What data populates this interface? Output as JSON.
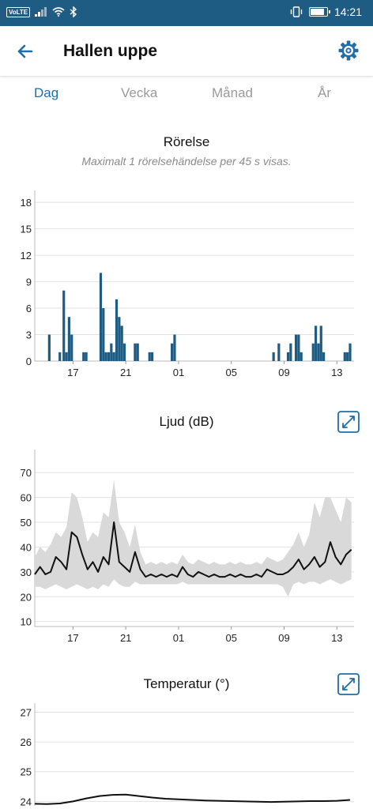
{
  "status_bar": {
    "network_badge": "VoLTE",
    "time": "14:21",
    "battery_level": 0.9,
    "icons": [
      "signal-icon",
      "wifi-icon",
      "bluetooth-icon",
      "vibrate-icon",
      "battery-icon"
    ]
  },
  "header": {
    "title": "Hallen uppe",
    "back_icon": "arrow-left-icon",
    "settings_icon": "gear-icon"
  },
  "tabs": [
    {
      "label": "Dag",
      "active": true
    },
    {
      "label": "Vecka",
      "active": false
    },
    {
      "label": "Månad",
      "active": false
    },
    {
      "label": "År",
      "active": false
    }
  ],
  "colors": {
    "status_bar": "#1f5c84",
    "accent": "#1f6ea8",
    "bar": "#1f5c84",
    "line": "#111111",
    "band": "#d9d9d9"
  },
  "chart_data": [
    {
      "type": "bar",
      "title": "Rörelse",
      "subtitle": "Maximalt 1 rörelsehändelse per 45 s visas.",
      "x_tick_labels": [
        "17",
        "21",
        "01",
        "05",
        "09",
        "13"
      ],
      "x_tick_positions": [
        17,
        21,
        25,
        29,
        33,
        37
      ],
      "x_range": [
        14.1,
        38.3
      ],
      "y_ticks": [
        0,
        3,
        6,
        9,
        12,
        15,
        18
      ],
      "ylim": [
        0,
        19
      ],
      "grid": true,
      "x": [
        15.2,
        16.0,
        16.3,
        16.5,
        16.7,
        16.9,
        17.8,
        18.0,
        19.1,
        19.3,
        19.5,
        19.7,
        19.9,
        20.1,
        20.3,
        20.5,
        20.7,
        20.9,
        21.7,
        21.9,
        22.8,
        23.0,
        24.5,
        24.7,
        32.2,
        32.6,
        33.3,
        33.5,
        33.9,
        34.1,
        34.3,
        35.2,
        35.4,
        35.6,
        35.8,
        36.0,
        37.6,
        37.8,
        38.0
      ],
      "values": [
        3,
        1,
        8,
        1,
        5,
        3,
        1,
        1,
        10,
        6,
        1,
        1,
        2,
        1,
        7,
        5,
        4,
        2,
        2,
        2,
        1,
        1,
        2,
        3,
        1,
        2,
        1,
        2,
        3,
        3,
        1,
        2,
        4,
        2,
        4,
        1,
        1,
        1,
        2
      ]
    },
    {
      "type": "line",
      "title": "Ljud (dB)",
      "x_tick_labels": [
        "17",
        "21",
        "01",
        "05",
        "09",
        "13"
      ],
      "x_tick_positions": [
        17,
        21,
        25,
        29,
        33,
        37
      ],
      "x_range": [
        14.1,
        38.3
      ],
      "y_ticks": [
        10,
        20,
        30,
        40,
        50,
        60,
        70
      ],
      "ylim": [
        8,
        78
      ],
      "grid": true,
      "band": true,
      "x": [
        14.1,
        14.5,
        14.9,
        15.3,
        15.7,
        16.1,
        16.5,
        16.9,
        17.3,
        17.7,
        18.1,
        18.5,
        18.9,
        19.3,
        19.7,
        20.1,
        20.5,
        20.9,
        21.3,
        21.7,
        22.1,
        22.5,
        22.9,
        23.3,
        23.7,
        24.1,
        24.5,
        24.9,
        25.3,
        25.7,
        26.1,
        26.5,
        26.9,
        27.3,
        27.7,
        28.1,
        28.5,
        28.9,
        29.3,
        29.7,
        30.1,
        30.5,
        30.9,
        31.3,
        31.7,
        32.1,
        32.5,
        32.9,
        33.3,
        33.7,
        34.1,
        34.5,
        34.9,
        35.3,
        35.7,
        36.1,
        36.5,
        36.9,
        37.3,
        37.7,
        38.1
      ],
      "values": [
        29,
        32,
        29,
        30,
        36,
        34,
        31,
        46,
        44,
        37,
        31,
        34,
        30,
        36,
        33,
        50,
        34,
        32,
        30,
        38,
        31,
        28,
        29,
        28,
        29,
        28,
        29,
        28,
        32,
        29,
        28,
        30,
        29,
        28,
        29,
        28,
        28,
        29,
        28,
        29,
        28,
        28,
        29,
        28,
        31,
        30,
        29,
        29,
        30,
        32,
        35,
        31,
        33,
        36,
        32,
        34,
        42,
        36,
        33,
        37,
        39
      ],
      "low": [
        24,
        24,
        23,
        24,
        25,
        24,
        23,
        24,
        25,
        24,
        23,
        24,
        23,
        25,
        24,
        27,
        25,
        24,
        24,
        26,
        25,
        25,
        25,
        25,
        25,
        25,
        25,
        25,
        26,
        25,
        25,
        25,
        25,
        25,
        25,
        25,
        25,
        25,
        25,
        25,
        25,
        25,
        25,
        25,
        25,
        25,
        25,
        24,
        20,
        25,
        26,
        25,
        26,
        26,
        25,
        26,
        27,
        26,
        25,
        26,
        27
      ],
      "high": [
        36,
        40,
        38,
        41,
        46,
        44,
        48,
        62,
        60,
        52,
        42,
        46,
        44,
        54,
        52,
        67,
        50,
        46,
        40,
        49,
        38,
        33,
        34,
        33,
        34,
        33,
        34,
        33,
        37,
        34,
        33,
        35,
        34,
        33,
        34,
        33,
        33,
        34,
        33,
        34,
        33,
        33,
        34,
        33,
        36,
        35,
        34,
        35,
        38,
        41,
        46,
        40,
        45,
        58,
        52,
        60,
        60,
        55,
        50,
        60,
        58
      ]
    },
    {
      "type": "line",
      "title": "Temperatur (°)",
      "x_range": [
        14.1,
        38.3
      ],
      "y_ticks": [
        24,
        25,
        26,
        27
      ],
      "ylim": [
        23.85,
        27.2
      ],
      "grid": true,
      "x": [
        14.1,
        15.0,
        16.0,
        17.0,
        18.0,
        19.0,
        20.0,
        21.0,
        22.0,
        23.0,
        24.0,
        25.0,
        26.0,
        27.0,
        28.0,
        29.0,
        30.0,
        31.0,
        32.0,
        33.0,
        34.0,
        35.0,
        36.0,
        37.0,
        38.0
      ],
      "values": [
        23.92,
        23.91,
        23.93,
        24.0,
        24.1,
        24.18,
        24.22,
        24.23,
        24.18,
        24.13,
        24.09,
        24.07,
        24.05,
        24.03,
        24.02,
        24.01,
        24.0,
        23.99,
        23.98,
        23.99,
        24.0,
        24.01,
        24.01,
        24.02,
        24.05
      ]
    }
  ]
}
